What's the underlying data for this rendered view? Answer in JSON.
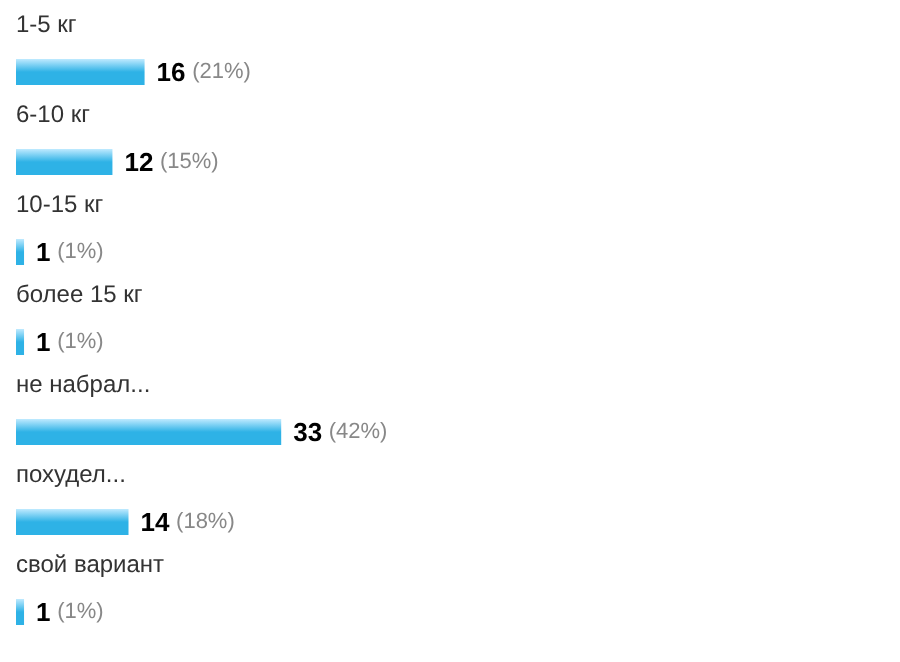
{
  "chart_data": {
    "type": "bar",
    "orientation": "horizontal",
    "categories": [
      "1-5 кг",
      "6-10 кг",
      "10-15 кг",
      "более 15 кг",
      "не набрал...",
      "похудел...",
      "свой вариант"
    ],
    "values": [
      16,
      12,
      1,
      1,
      33,
      14,
      1
    ],
    "value_labels": [
      "16 (21%)",
      "12 (15%)",
      "1 (1%)",
      "1 (1%)",
      "33 (42%)",
      "14 (18%)",
      "1 (1%)"
    ],
    "color": "#2eb2e6",
    "xlim": [
      0,
      110
    ],
    "tick_labels": false
  }
}
